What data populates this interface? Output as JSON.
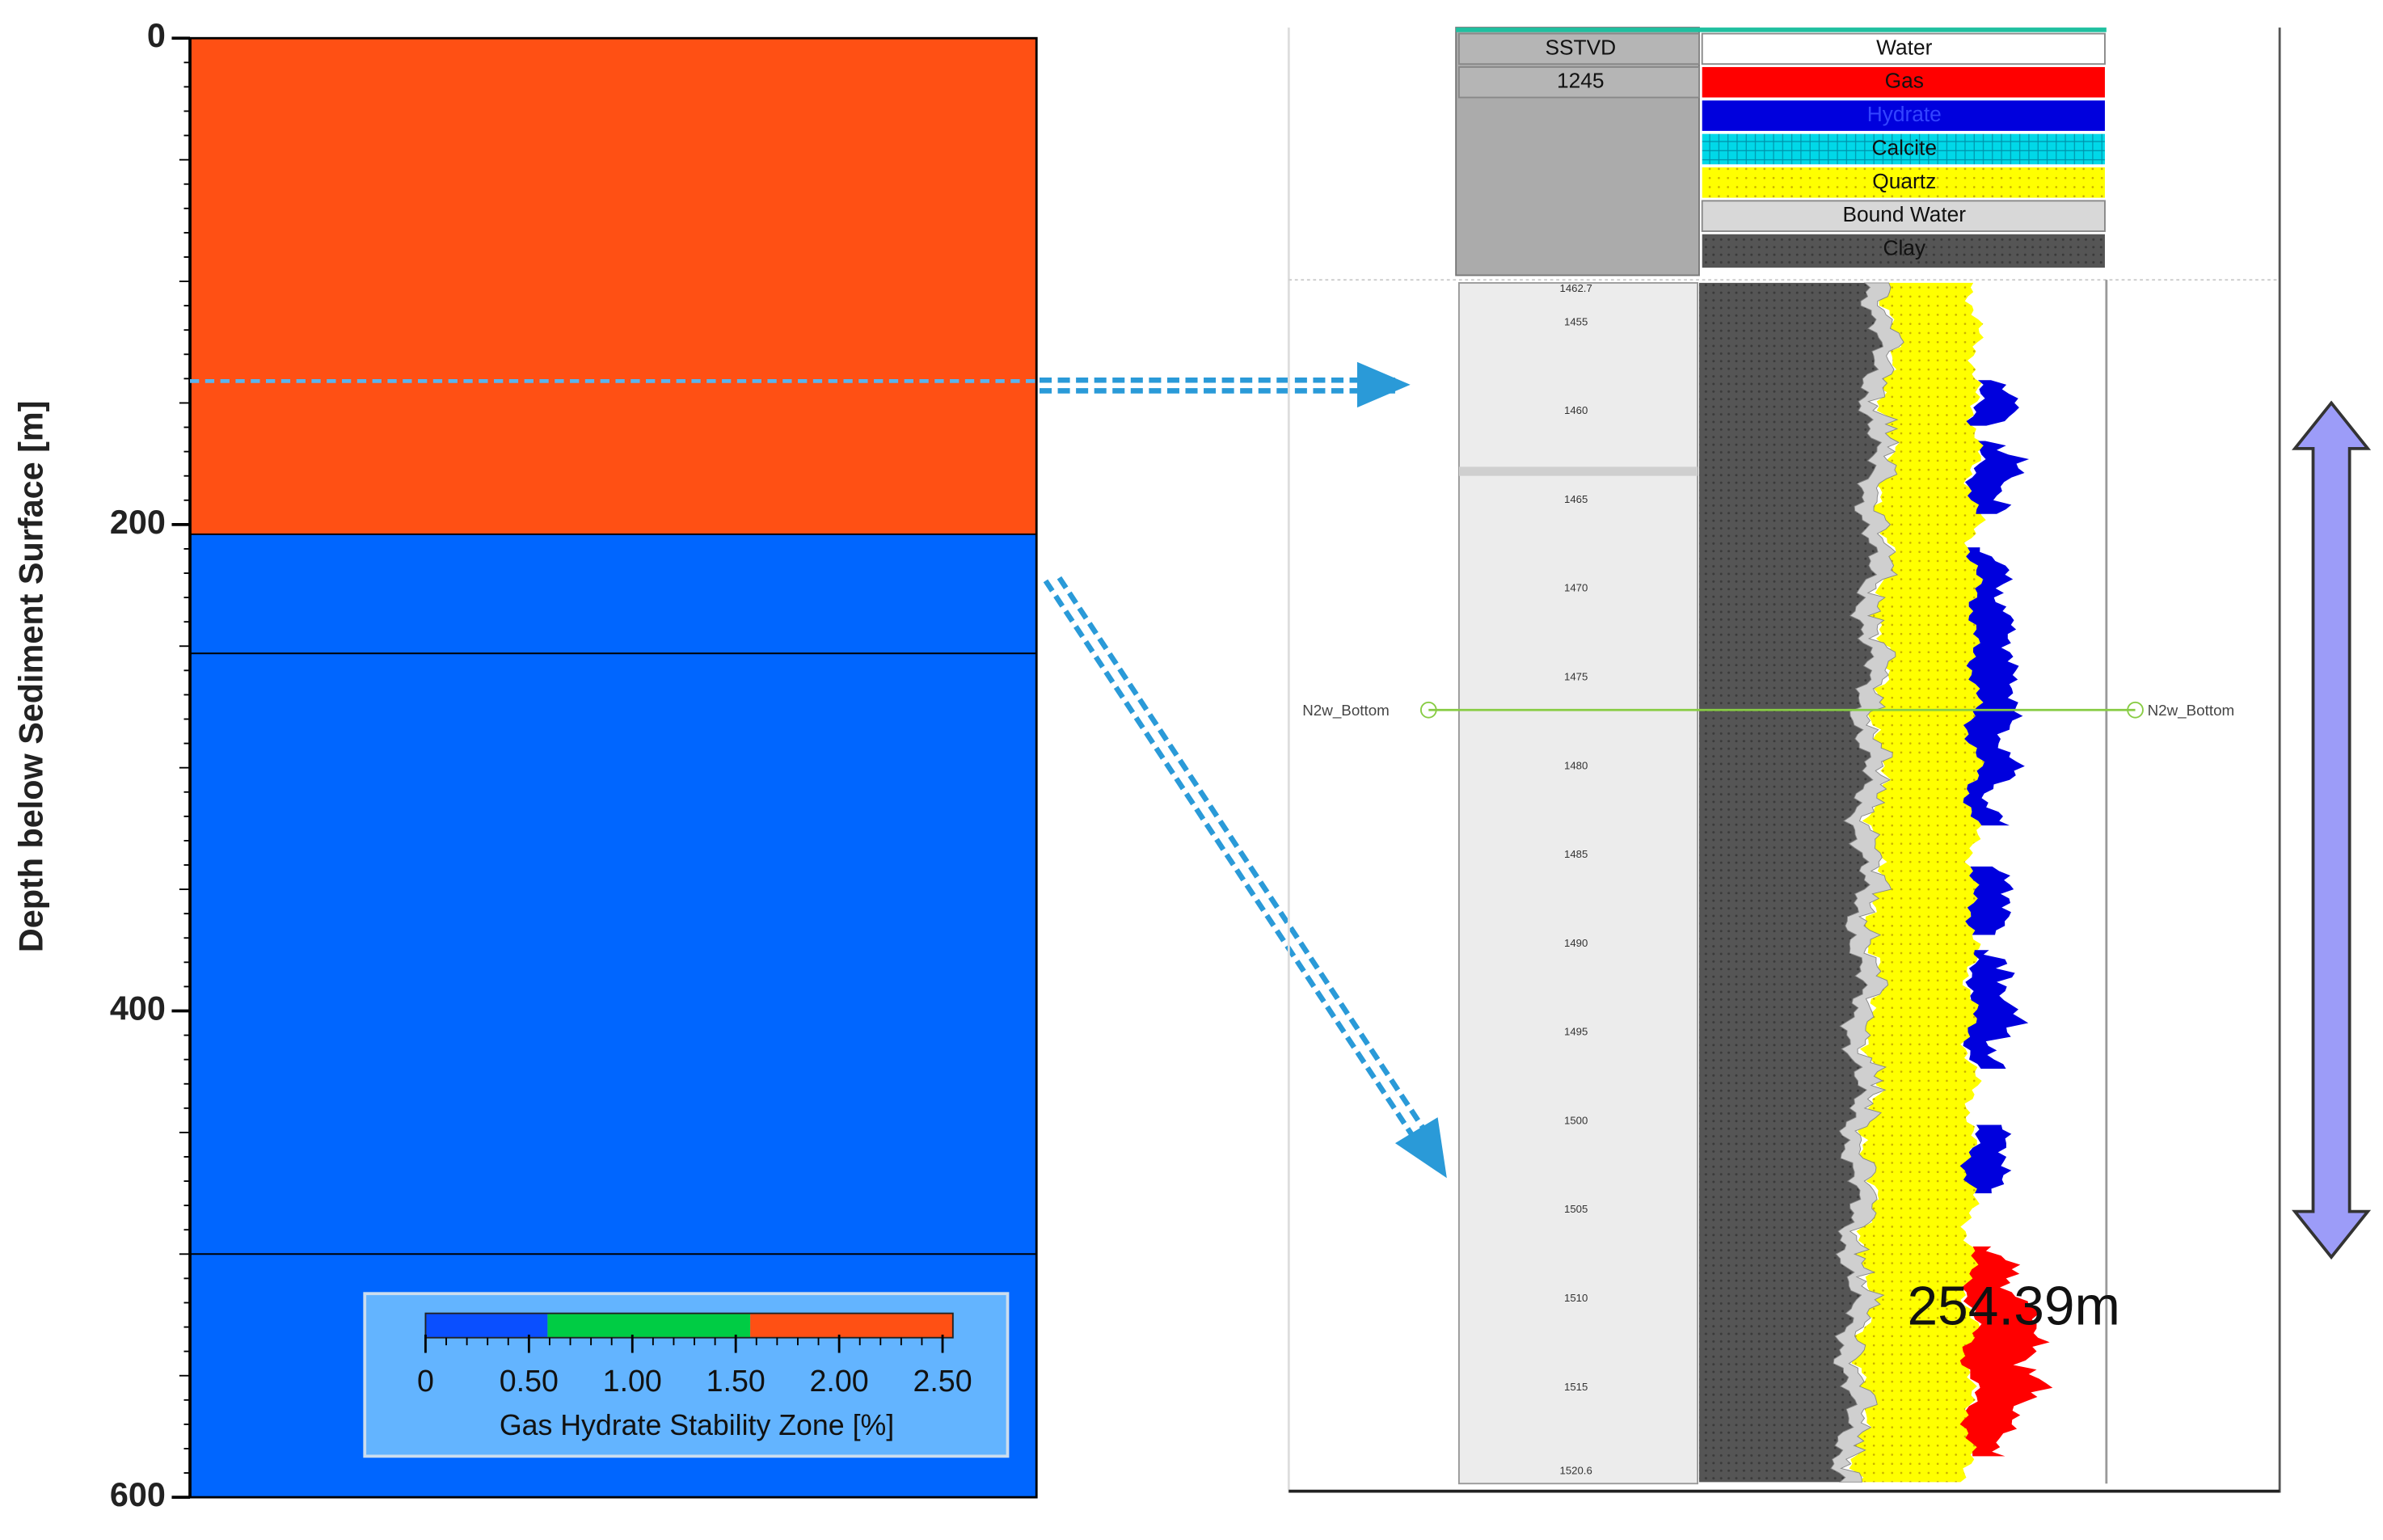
{
  "chart_data": {
    "type": "bar",
    "stacked": true,
    "ylabel": "Depth below Sediment Surface [m]",
    "ylim": [
      0,
      600
    ],
    "y_inverted": true,
    "yticks": [
      0,
      200,
      400,
      600
    ],
    "hline": 141,
    "series": [
      {
        "color": "#ff5014",
        "values": [
          204
        ]
      },
      {
        "color": "#0066ff",
        "values": [
          49
        ]
      },
      {
        "color": "#0066ff",
        "values": [
          247
        ]
      },
      {
        "color": "#0066ff",
        "values": [
          100
        ]
      }
    ],
    "colorbar": {
      "label": "Gas Hydrate Stability Zone [%]",
      "bounds": [
        0,
        0.59,
        1.57,
        2.55
      ],
      "colors": [
        "#0a4fff",
        "#00cc44",
        "#ff5014"
      ],
      "ticks": [
        0,
        {
          "value": 0.5,
          "label": "0.50"
        },
        {
          "value": 1,
          "label": "1.00"
        },
        {
          "value": 1.5,
          "label": "1.50"
        },
        {
          "value": 2,
          "label": "2.00"
        },
        {
          "value": 2.5,
          "label": "2.50"
        }
      ]
    }
  },
  "well_log": {
    "header": [
      "SSTVD",
      "1245"
    ],
    "legend": [
      "Water",
      "Gas",
      "Hydrate",
      "Calcite",
      "Quartz",
      "Bound Water",
      "Clay"
    ],
    "depths": [
      "1462.7",
      "1455",
      "1460",
      "1465",
      "1470",
      "1475",
      "1480",
      "1485",
      "1490",
      "1495",
      "1500",
      "1505",
      "1510",
      "1515",
      "1520.6"
    ],
    "marker_left": "N2w_Bottom",
    "marker_right": "N2w_Bottom",
    "thickness_label": "254.39m"
  }
}
